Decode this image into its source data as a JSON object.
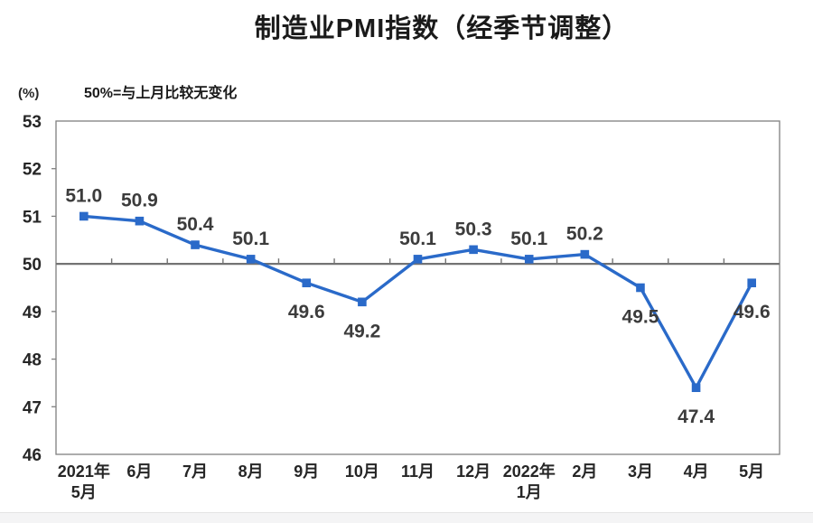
{
  "chart_data": {
    "type": "line",
    "title": "制造业PMI指数（经季节调整）",
    "subtitle": "50%=与上月比较无变化",
    "y_unit_label": "(%)",
    "categories": [
      "2021年\n5月",
      "6月",
      "7月",
      "8月",
      "9月",
      "10月",
      "11月",
      "12月",
      "2022年\n1月",
      "2月",
      "3月",
      "4月",
      "5月"
    ],
    "values": [
      51.0,
      50.9,
      50.4,
      50.1,
      49.6,
      49.2,
      50.1,
      50.3,
      50.1,
      50.2,
      49.5,
      47.4,
      49.6
    ],
    "label_positions": [
      "above",
      "above",
      "above",
      "above",
      "below",
      "below",
      "above",
      "above",
      "above",
      "above",
      "below",
      "below",
      "below"
    ],
    "ylim": [
      46,
      53
    ],
    "yticks": [
      53,
      52,
      51,
      50,
      49,
      48,
      47,
      46
    ],
    "baseline_value": 50,
    "grid": false,
    "legend_position": "none",
    "colors": {
      "series": "#2a6ac9",
      "axis": "#808080",
      "baseline": "#737373",
      "tick_text": "#262626",
      "data_label": "#3c3c3c"
    }
  }
}
